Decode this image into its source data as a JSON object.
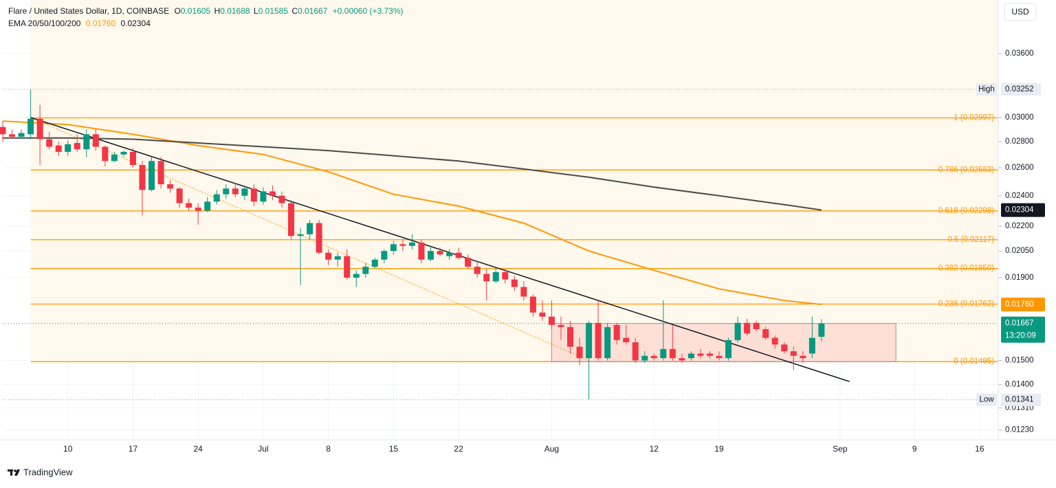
{
  "chart_data": {
    "type": "candlestick",
    "title": "Flare / United States Dollar, 1D, COINBASE",
    "ohlc_letters": [
      "O",
      "H",
      "L",
      "C"
    ],
    "change": "+0.00060 (+3.73%)",
    "currency": "USD",
    "up_color": "#089981",
    "down_color": "#f23645",
    "log_scale": true,
    "grid": true,
    "ylim": [
      0.01196,
      0.04195
    ],
    "yticks": [
      {
        "value": 0.036,
        "label": "0.03600"
      },
      {
        "value": 0.03,
        "label": "0.03000"
      },
      {
        "value": 0.028,
        "label": "0.02800"
      },
      {
        "value": 0.026,
        "label": "0.02600"
      },
      {
        "value": 0.024,
        "label": "0.02400"
      },
      {
        "value": 0.022,
        "label": "0.02200"
      },
      {
        "value": 0.0205,
        "label": "0.02050"
      },
      {
        "value": 0.019,
        "label": "0.01900"
      },
      {
        "value": 0.015,
        "label": "0.01500"
      },
      {
        "value": 0.014,
        "label": "0.01400"
      },
      {
        "value": 0.0131,
        "label": "0.01310"
      },
      {
        "value": 0.0123,
        "label": "0.01230"
      }
    ],
    "xlim": [
      "Jun 3",
      "Sep 18"
    ],
    "xticks": [
      {
        "value": "Jun 10",
        "label": "10"
      },
      {
        "value": "Jun 17",
        "label": "17"
      },
      {
        "value": "Jun 24",
        "label": "24"
      },
      {
        "value": "Jul 1",
        "label": "Jul"
      },
      {
        "value": "Jul 8",
        "label": "8"
      },
      {
        "value": "Jul 15",
        "label": "15"
      },
      {
        "value": "Jul 22",
        "label": "22"
      },
      {
        "value": "Aug 1",
        "label": "Aug"
      },
      {
        "value": "Aug 12",
        "label": "12"
      },
      {
        "value": "Aug 19",
        "label": "19"
      },
      {
        "value": "Sep 1",
        "label": "Sep"
      },
      {
        "value": "Sep 9",
        "label": "9"
      },
      {
        "value": "Sep 16",
        "label": "16"
      }
    ],
    "x": [
      "Jun 3",
      "Jun 4",
      "Jun 5",
      "Jun 6",
      "Jun 7",
      "Jun 8",
      "Jun 9",
      "Jun 10",
      "Jun 11",
      "Jun 12",
      "Jun 13",
      "Jun 14",
      "Jun 15",
      "Jun 16",
      "Jun 17",
      "Jun 18",
      "Jun 19",
      "Jun 20",
      "Jun 21",
      "Jun 22",
      "Jun 23",
      "Jun 24",
      "Jun 25",
      "Jun 26",
      "Jun 27",
      "Jun 28",
      "Jun 29",
      "Jun 30",
      "Jul 1",
      "Jul 2",
      "Jul 3",
      "Jul 4",
      "Jul 5",
      "Jul 6",
      "Jul 7",
      "Jul 8",
      "Jul 9",
      "Jul 10",
      "Jul 11",
      "Jul 12",
      "Jul 13",
      "Jul 14",
      "Jul 15",
      "Jul 16",
      "Jul 17",
      "Jul 18",
      "Jul 19",
      "Jul 20",
      "Jul 21",
      "Jul 22",
      "Jul 23",
      "Jul 24",
      "Jul 25",
      "Jul 26",
      "Jul 27",
      "Jul 28",
      "Jul 29",
      "Jul 30",
      "Jul 31",
      "Aug 1",
      "Aug 2",
      "Aug 3",
      "Aug 4",
      "Aug 5",
      "Aug 6",
      "Aug 7",
      "Aug 8",
      "Aug 9",
      "Aug 10",
      "Aug 11",
      "Aug 12",
      "Aug 13",
      "Aug 14",
      "Aug 15",
      "Aug 16",
      "Aug 17",
      "Aug 18",
      "Aug 19",
      "Aug 20",
      "Aug 21",
      "Aug 22",
      "Aug 23",
      "Aug 24",
      "Aug 25",
      "Aug 26",
      "Aug 27",
      "Aug 28",
      "Aug 29",
      "Aug 30"
    ],
    "open": [
      0.0292,
      0.0286,
      0.0284,
      0.0286,
      0.0299,
      0.0282,
      0.0277,
      0.0272,
      0.0279,
      0.0274,
      0.0286,
      0.0276,
      0.0265,
      0.027,
      0.0272,
      0.0262,
      0.0244,
      0.0265,
      0.0248,
      0.0245,
      0.0235,
      0.0232,
      0.023,
      0.0236,
      0.0241,
      0.0245,
      0.024,
      0.0245,
      0.0236,
      0.0243,
      0.024,
      0.0235,
      0.0214,
      0.0215,
      0.0222,
      0.0204,
      0.02,
      0.0202,
      0.019,
      0.0192,
      0.0196,
      0.02,
      0.0205,
      0.0209,
      0.0208,
      0.021,
      0.02,
      0.0205,
      0.0202,
      0.0204,
      0.0201,
      0.0196,
      0.0192,
      0.0188,
      0.0193,
      0.0189,
      0.0185,
      0.018,
      0.0172,
      0.017,
      0.0166,
      0.0165,
      0.0156,
      0.0151,
      0.0167,
      0.0151,
      0.0166,
      0.016,
      0.0158,
      0.015,
      0.0152,
      0.0151,
      0.0155,
      0.0151,
      0.0151,
      0.0153,
      0.0153,
      0.0152,
      0.0151,
      0.0159,
      0.0167,
      0.0167,
      0.0164,
      0.016,
      0.0157,
      0.0154,
      0.0152,
      0.0153,
      0.01605
    ],
    "high": [
      0.0297,
      0.029,
      0.029,
      0.0325,
      0.0311,
      0.0288,
      0.028,
      0.0281,
      0.0286,
      0.029,
      0.029,
      0.0277,
      0.0272,
      0.0273,
      0.0275,
      0.0265,
      0.0268,
      0.0268,
      0.0251,
      0.0246,
      0.0238,
      0.0235,
      0.0239,
      0.0244,
      0.0248,
      0.0249,
      0.0247,
      0.0248,
      0.0246,
      0.0247,
      0.0243,
      0.0236,
      0.0219,
      0.0224,
      0.0224,
      0.0206,
      0.0204,
      0.0206,
      0.0194,
      0.0198,
      0.0201,
      0.0206,
      0.0211,
      0.0212,
      0.0215,
      0.0212,
      0.0207,
      0.0207,
      0.0206,
      0.0207,
      0.0203,
      0.0199,
      0.0195,
      0.0195,
      0.0195,
      0.0191,
      0.0188,
      0.0181,
      0.0178,
      0.0178,
      0.017,
      0.0168,
      0.016,
      0.0168,
      0.0178,
      0.0167,
      0.0167,
      0.0166,
      0.016,
      0.0154,
      0.0153,
      0.0178,
      0.0166,
      0.0153,
      0.0154,
      0.0155,
      0.0154,
      0.0154,
      0.016,
      0.017,
      0.0169,
      0.0168,
      0.0165,
      0.0161,
      0.0158,
      0.0156,
      0.0154,
      0.017,
      0.01688
    ],
    "low": [
      0.028,
      0.0283,
      0.0282,
      0.0282,
      0.0262,
      0.0274,
      0.0269,
      0.0269,
      0.0272,
      0.0268,
      0.0273,
      0.0261,
      0.0264,
      0.0268,
      0.026,
      0.0227,
      0.0243,
      0.0245,
      0.0242,
      0.0232,
      0.023,
      0.0221,
      0.0229,
      0.0234,
      0.0238,
      0.0239,
      0.0237,
      0.0233,
      0.0234,
      0.0237,
      0.0232,
      0.0212,
      0.0186,
      0.0212,
      0.0203,
      0.0197,
      0.0196,
      0.0189,
      0.0185,
      0.019,
      0.0195,
      0.0198,
      0.0203,
      0.0205,
      0.0206,
      0.0198,
      0.0199,
      0.0202,
      0.02,
      0.02,
      0.0195,
      0.019,
      0.0178,
      0.0187,
      0.0187,
      0.0183,
      0.0178,
      0.017,
      0.0168,
      0.0164,
      0.0159,
      0.0153,
      0.0148,
      0.01341,
      0.015,
      0.015,
      0.0157,
      0.0157,
      0.0149,
      0.0149,
      0.015,
      0.015,
      0.015,
      0.0149,
      0.015,
      0.0151,
      0.0151,
      0.015,
      0.015,
      0.0158,
      0.0161,
      0.0163,
      0.0159,
      0.0155,
      0.0153,
      0.0146,
      0.0149,
      0.0151,
      0.01585
    ],
    "close": [
      0.0286,
      0.0284,
      0.0287,
      0.0299,
      0.0282,
      0.0276,
      0.0272,
      0.0278,
      0.0274,
      0.0286,
      0.0276,
      0.0265,
      0.027,
      0.0272,
      0.0262,
      0.0244,
      0.0265,
      0.0248,
      0.0245,
      0.0235,
      0.0232,
      0.023,
      0.0236,
      0.0241,
      0.0245,
      0.0241,
      0.0245,
      0.0236,
      0.0243,
      0.024,
      0.0235,
      0.0214,
      0.0215,
      0.0222,
      0.0204,
      0.02,
      0.0202,
      0.019,
      0.0192,
      0.0196,
      0.02,
      0.0205,
      0.0209,
      0.0208,
      0.021,
      0.02,
      0.0205,
      0.0203,
      0.0204,
      0.0201,
      0.0196,
      0.0192,
      0.0188,
      0.0193,
      0.0189,
      0.0185,
      0.018,
      0.0172,
      0.017,
      0.0166,
      0.0165,
      0.0156,
      0.0151,
      0.0167,
      0.0151,
      0.0165,
      0.0159,
      0.0158,
      0.015,
      0.0152,
      0.0151,
      0.0155,
      0.0151,
      0.015,
      0.0153,
      0.0152,
      0.0152,
      0.0151,
      0.0159,
      0.0167,
      0.0162,
      0.0164,
      0.016,
      0.0157,
      0.0154,
      0.0152,
      0.0151,
      0.016,
      0.01667
    ],
    "countdown": "13:20:09",
    "indicator": {
      "name": "EMA 20/50/100/200",
      "lines": [
        {
          "color": "#ff9800",
          "x": [
            "Jun 3",
            "Jun 10",
            "Jun 17",
            "Jun 24",
            "Jul 1",
            "Jul 8",
            "Jul 15",
            "Jul 22",
            "Jul 29",
            "Aug 5",
            "Aug 12",
            "Aug 19",
            "Aug 26",
            "Aug 30"
          ],
          "values": [
            0.0297,
            0.0294,
            0.0286,
            0.0277,
            0.027,
            0.0257,
            0.0241,
            0.0233,
            0.0222,
            0.0205,
            0.0194,
            0.0184,
            0.0178,
            0.0176
          ],
          "last": {
            "value": 0.0176,
            "label": "0.01760"
          }
        },
        {
          "color": "#4a4a4a",
          "x": [
            "Jun 3",
            "Jun 10",
            "Jun 17",
            "Jun 24",
            "Jul 1",
            "Jul 8",
            "Jul 15",
            "Jul 22",
            "Jul 29",
            "Aug 5",
            "Aug 12",
            "Aug 19",
            "Aug 26",
            "Aug 30"
          ],
          "values": [
            0.0283,
            0.0283,
            0.0282,
            0.0279,
            0.0276,
            0.0273,
            0.0269,
            0.0265,
            0.0259,
            0.0253,
            0.0246,
            0.024,
            0.0234,
            0.02304
          ],
          "last": {
            "value": 0.02304,
            "label": "0.02304"
          }
        }
      ]
    },
    "fib_start": "Jun 6",
    "fib_color": "#ff9800",
    "fib_levels": [
      {
        "value": 0.02997,
        "label": "1 (0.02997)"
      },
      {
        "value": 0.02583,
        "label": "0.786 (0.02583)"
      },
      {
        "value": 0.02298,
        "label": "0.618 (0.02298)"
      },
      {
        "value": 0.02117,
        "label": "0.5 (0.02117)"
      },
      {
        "value": 0.0195,
        "label": "0.382 (0.01950)"
      },
      {
        "value": 0.01762,
        "label": "0.236 (0.01762)"
      },
      {
        "value": 0.01495,
        "label": "0 (0.01495)"
      }
    ],
    "trendline": {
      "x": [
        "Jun 6",
        "Sep 2"
      ],
      "values": [
        0.03,
        0.01413
      ],
      "color": "#131722"
    },
    "guide_line": {
      "x": [
        "Jun 6",
        "Aug 5"
      ],
      "values": [
        0.03,
        0.015
      ],
      "color": "#ff9800"
    },
    "range_box": {
      "x": [
        "Aug 1",
        "Sep 7"
      ],
      "values": [
        0.01495,
        0.01667
      ]
    },
    "high_marker": {
      "label": "High",
      "value": 0.03252
    },
    "low_marker": {
      "label": "Low",
      "value": 0.01341
    }
  },
  "brand": "TradingView"
}
